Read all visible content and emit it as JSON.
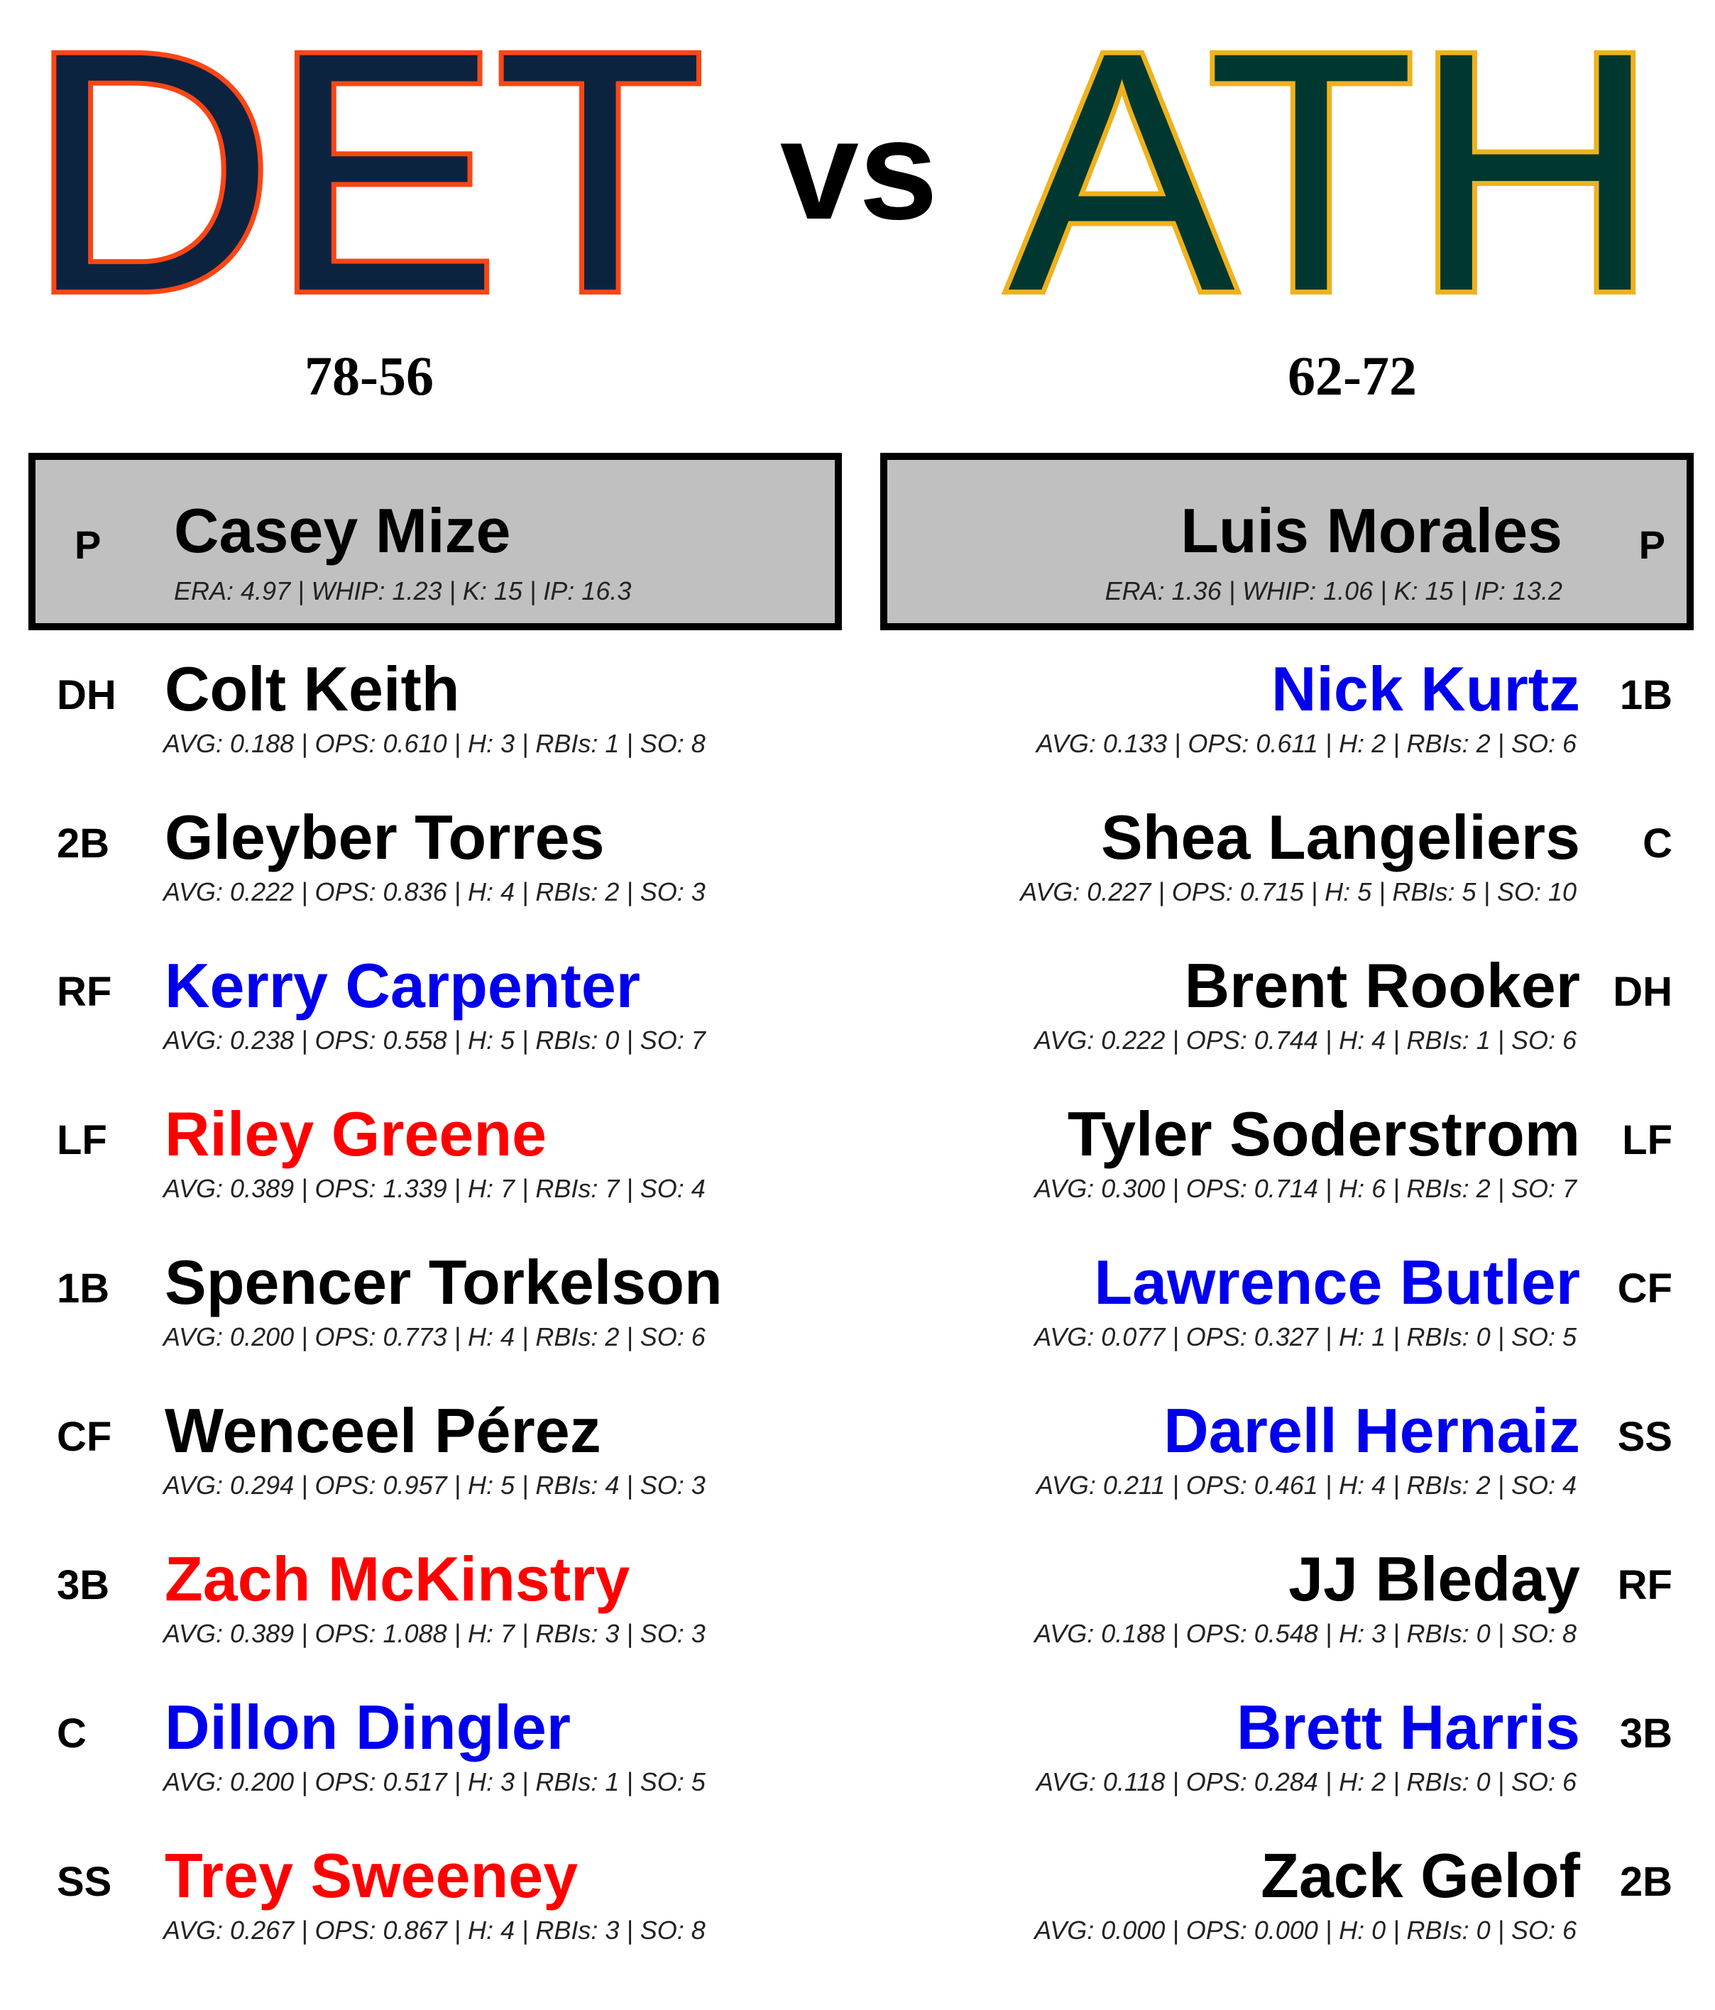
{
  "colors": {
    "home_fill": "#0c2340",
    "home_stroke": "#fa4616",
    "away_fill": "#003831",
    "away_stroke": "#efb21e",
    "name_default": "#000000",
    "name_blue": "#0000ee",
    "name_red": "#ff0000"
  },
  "header": {
    "vs": "vs"
  },
  "home": {
    "abbr": "DET",
    "record": "78-56",
    "pitcher": {
      "position": "P",
      "name": "Casey Mize",
      "stats": "ERA: 4.97 | WHIP: 1.23 | K: 15 | IP: 16.3"
    },
    "lineup": [
      {
        "position": "DH",
        "name": "Colt Keith",
        "name_color": "#000000",
        "stats": "AVG: 0.188 | OPS: 0.610 | H: 3 | RBIs: 1 | SO: 8"
      },
      {
        "position": "2B",
        "name": "Gleyber Torres",
        "name_color": "#000000",
        "stats": "AVG: 0.222 | OPS: 0.836 | H: 4 | RBIs: 2 | SO: 3"
      },
      {
        "position": "RF",
        "name": "Kerry Carpenter",
        "name_color": "#0000ee",
        "stats": "AVG: 0.238 | OPS: 0.558 | H: 5 | RBIs: 0 | SO: 7"
      },
      {
        "position": "LF",
        "name": "Riley Greene",
        "name_color": "#ff0000",
        "stats": "AVG: 0.389 | OPS: 1.339 | H: 7 | RBIs: 7 | SO: 4"
      },
      {
        "position": "1B",
        "name": "Spencer Torkelson",
        "name_color": "#000000",
        "stats": "AVG: 0.200 | OPS: 0.773 | H: 4 | RBIs: 2 | SO: 6"
      },
      {
        "position": "CF",
        "name": "Wenceel Pérez",
        "name_color": "#000000",
        "stats": "AVG: 0.294 | OPS: 0.957 | H: 5 | RBIs: 4 | SO: 3"
      },
      {
        "position": "3B",
        "name": "Zach McKinstry",
        "name_color": "#ff0000",
        "stats": "AVG: 0.389 | OPS: 1.088 | H: 7 | RBIs: 3 | SO: 3"
      },
      {
        "position": "C",
        "name": "Dillon Dingler",
        "name_color": "#0000ee",
        "stats": "AVG: 0.200 | OPS: 0.517 | H: 3 | RBIs: 1 | SO: 5"
      },
      {
        "position": "SS",
        "name": "Trey Sweeney",
        "name_color": "#ff0000",
        "stats": "AVG: 0.267 | OPS: 0.867 | H: 4 | RBIs: 3 | SO: 8"
      }
    ]
  },
  "away": {
    "abbr": "ATH",
    "record": "62-72",
    "pitcher": {
      "position": "P",
      "name": "Luis Morales",
      "stats": "ERA: 1.36 | WHIP: 1.06 | K: 15 | IP: 13.2"
    },
    "lineup": [
      {
        "position": "1B",
        "name": "Nick Kurtz",
        "name_color": "#0000ee",
        "stats": "AVG: 0.133 | OPS: 0.611 | H: 2 | RBIs: 2 | SO: 6"
      },
      {
        "position": "C",
        "name": "Shea Langeliers",
        "name_color": "#000000",
        "stats": "AVG: 0.227 | OPS: 0.715 | H: 5 | RBIs: 5 | SO: 10"
      },
      {
        "position": "DH",
        "name": "Brent Rooker",
        "name_color": "#000000",
        "stats": "AVG: 0.222 | OPS: 0.744 | H: 4 | RBIs: 1 | SO: 6"
      },
      {
        "position": "LF",
        "name": "Tyler Soderstrom",
        "name_color": "#000000",
        "stats": "AVG: 0.300 | OPS: 0.714 | H: 6 | RBIs: 2 | SO: 7"
      },
      {
        "position": "CF",
        "name": "Lawrence Butler",
        "name_color": "#0000ee",
        "stats": "AVG: 0.077 | OPS: 0.327 | H: 1 | RBIs: 0 | SO: 5"
      },
      {
        "position": "SS",
        "name": "Darell Hernaiz",
        "name_color": "#0000ee",
        "stats": "AVG: 0.211 | OPS: 0.461 | H: 4 | RBIs: 2 | SO: 4"
      },
      {
        "position": "RF",
        "name": "JJ Bleday",
        "name_color": "#000000",
        "stats": "AVG: 0.188 | OPS: 0.548 | H: 3 | RBIs: 0 | SO: 8"
      },
      {
        "position": "3B",
        "name": "Brett Harris",
        "name_color": "#0000ee",
        "stats": "AVG: 0.118 | OPS: 0.284 | H: 2 | RBIs: 0 | SO: 6"
      },
      {
        "position": "2B",
        "name": "Zack Gelof",
        "name_color": "#000000",
        "stats": "AVG: 0.000 | OPS: 0.000 | H: 0 | RBIs: 0 | SO: 6"
      }
    ]
  }
}
